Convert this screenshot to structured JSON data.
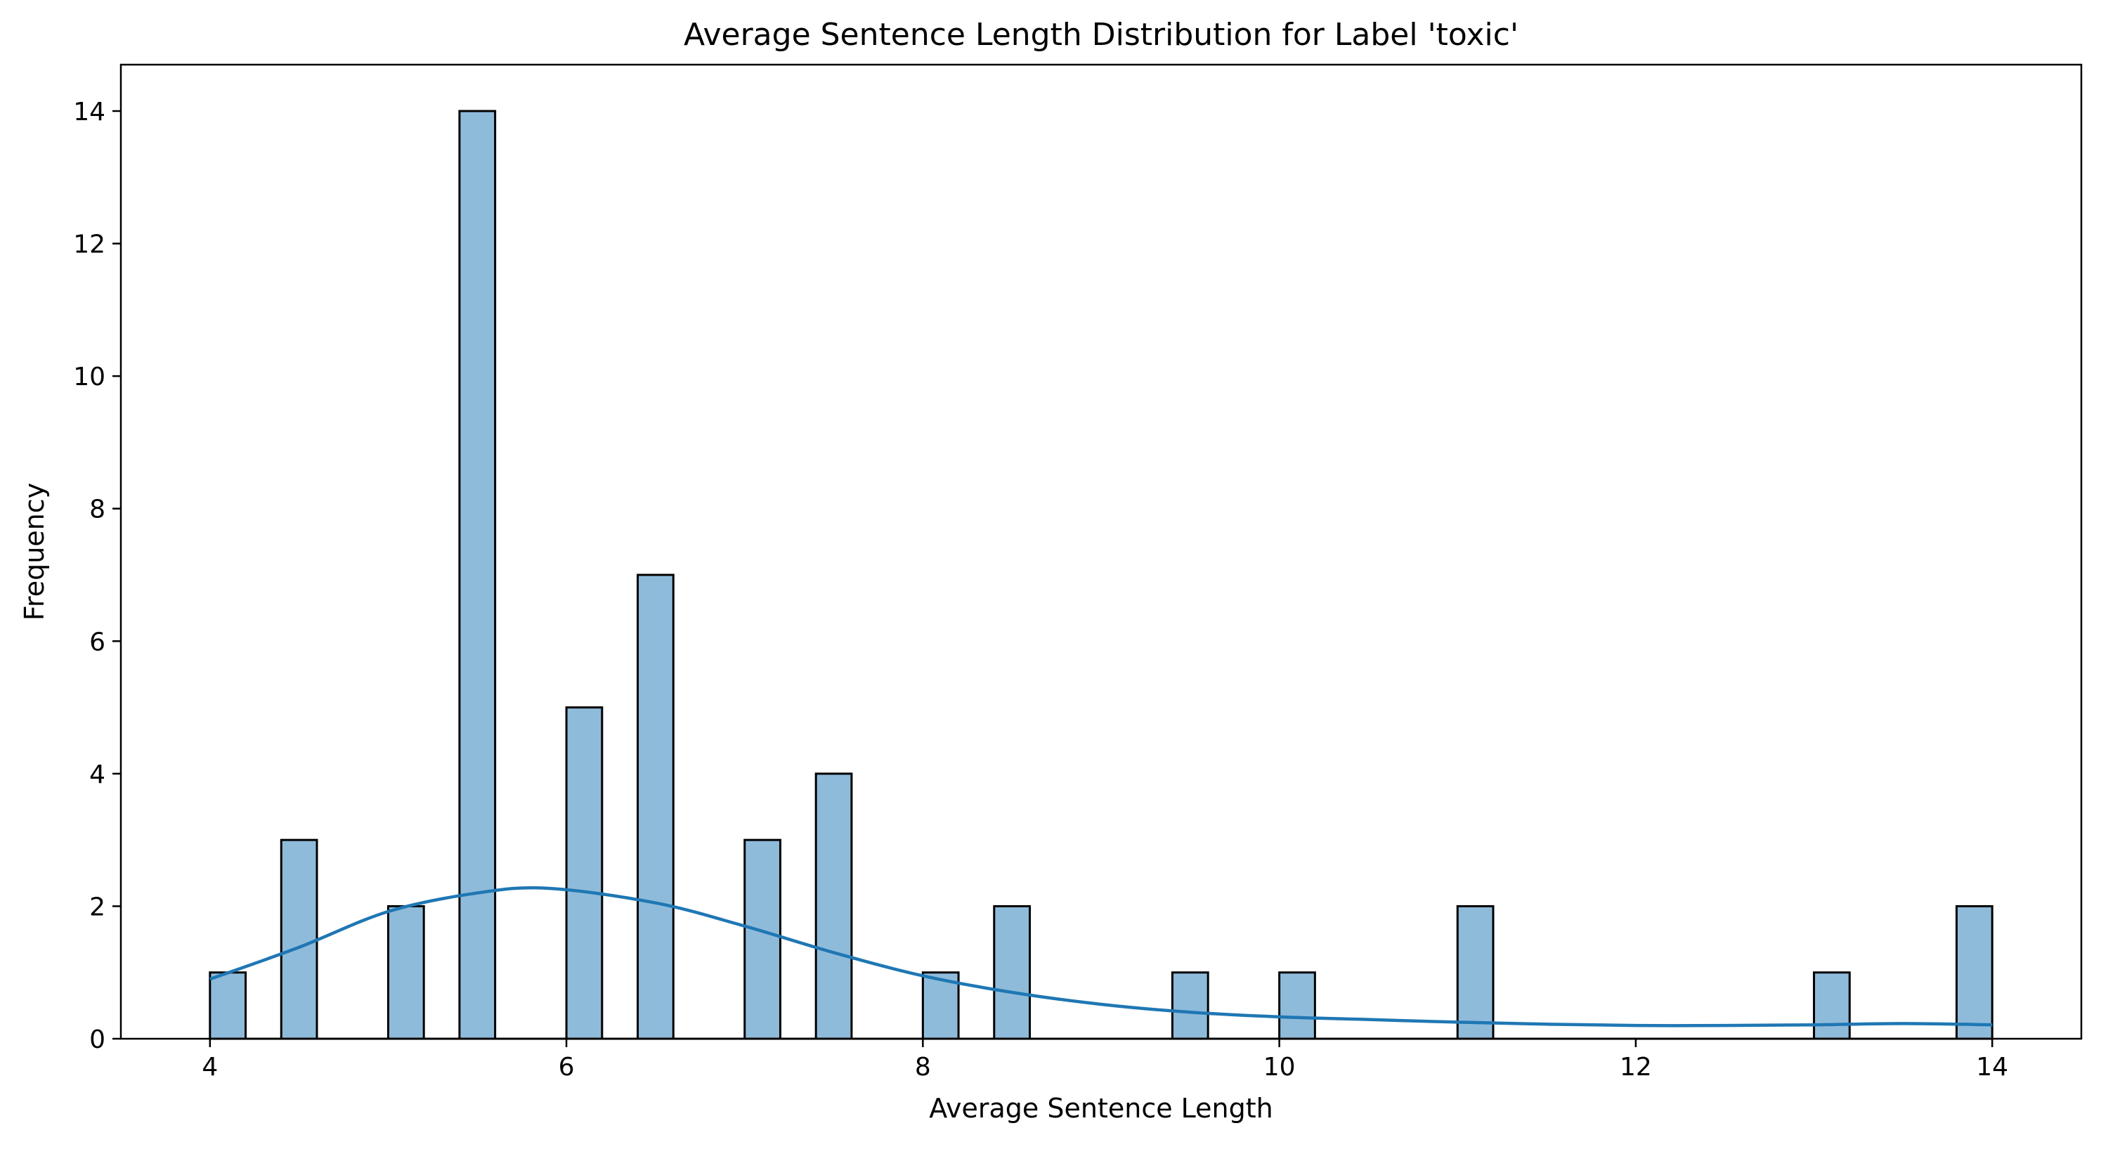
{
  "chart_data": {
    "type": "bar",
    "title": "Average Sentence Length Distribution for Label 'toxic'",
    "xlabel": "Average Sentence Length",
    "ylabel": "Frequency",
    "xlim": [
      3.5,
      14.5
    ],
    "ylim": [
      0,
      14.7
    ],
    "bin_width": 0.2,
    "xticks": [
      4,
      6,
      8,
      10,
      12,
      14
    ],
    "yticks": [
      0,
      2,
      4,
      6,
      8,
      10,
      12,
      14
    ],
    "bins": [
      {
        "start": 4.0,
        "end": 4.2,
        "count": 1
      },
      {
        "start": 4.4,
        "end": 4.6,
        "count": 3
      },
      {
        "start": 5.0,
        "end": 5.2,
        "count": 2
      },
      {
        "start": 5.4,
        "end": 5.6,
        "count": 14
      },
      {
        "start": 6.0,
        "end": 6.2,
        "count": 5
      },
      {
        "start": 6.4,
        "end": 6.6,
        "count": 7
      },
      {
        "start": 7.0,
        "end": 7.2,
        "count": 3
      },
      {
        "start": 7.4,
        "end": 7.6,
        "count": 4
      },
      {
        "start": 8.0,
        "end": 8.2,
        "count": 1
      },
      {
        "start": 8.4,
        "end": 8.6,
        "count": 2
      },
      {
        "start": 9.4,
        "end": 9.6,
        "count": 1
      },
      {
        "start": 10.0,
        "end": 10.2,
        "count": 1
      },
      {
        "start": 11.0,
        "end": 11.2,
        "count": 2
      },
      {
        "start": 13.0,
        "end": 13.2,
        "count": 1
      },
      {
        "start": 13.8,
        "end": 14.0,
        "count": 2
      }
    ],
    "kde_curve": {
      "x": [
        4.0,
        4.5,
        5.0,
        5.5,
        5.9,
        6.5,
        7.0,
        7.5,
        8.0,
        8.5,
        9.0,
        9.5,
        10.0,
        10.5,
        11.0,
        11.5,
        12.0,
        12.5,
        13.0,
        13.5,
        14.0
      ],
      "y": [
        0.9,
        1.38,
        1.92,
        2.2,
        2.27,
        2.05,
        1.7,
        1.3,
        0.95,
        0.7,
        0.52,
        0.4,
        0.33,
        0.29,
        0.25,
        0.22,
        0.2,
        0.2,
        0.21,
        0.23,
        0.21
      ]
    },
    "colors": {
      "bar_fill": "#8fbbdb",
      "bar_edge": "#000000",
      "kde_line": "#1f77b4"
    },
    "grid": false,
    "legend": "none"
  }
}
